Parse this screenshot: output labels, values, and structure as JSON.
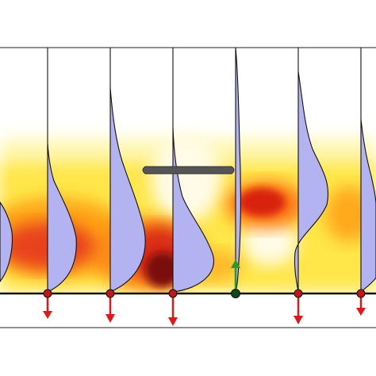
{
  "figure": {
    "background": "#ffffff",
    "heatmap_colormap": [
      "#fffbe0",
      "#fff27a",
      "#ffd21f",
      "#ff9a12",
      "#e8351a",
      "#a00e0e",
      "#3a0606"
    ],
    "profile_fill": "#b3b3f2",
    "profile_stroke": "#111111",
    "ground_line_color": "#111111",
    "obstacle_color": "#555555",
    "sensor_dot_color": "#c01818",
    "active_sensor_dot_color": "#0c4a1e",
    "downward_arrow_color": "#dd1a1a",
    "upward_arrow_color": "#2a9a2a",
    "frame_line_color": "#222222"
  },
  "stations": [
    {
      "id": 1,
      "arrow": "down",
      "profile": "belly-left-low"
    },
    {
      "id": 2,
      "arrow": "down",
      "profile": "bulge-mid-low"
    },
    {
      "id": 3,
      "arrow": "down",
      "profile": "bulge-broad-low"
    },
    {
      "id": 4,
      "arrow": "down",
      "profile": "bulge-near-ground"
    },
    {
      "id": 5,
      "arrow": "up",
      "profile": "thin"
    },
    {
      "id": 6,
      "arrow": "down",
      "profile": "double-bulge"
    },
    {
      "id": 7,
      "arrow": "down",
      "profile": "bulge-mid-right"
    }
  ]
}
